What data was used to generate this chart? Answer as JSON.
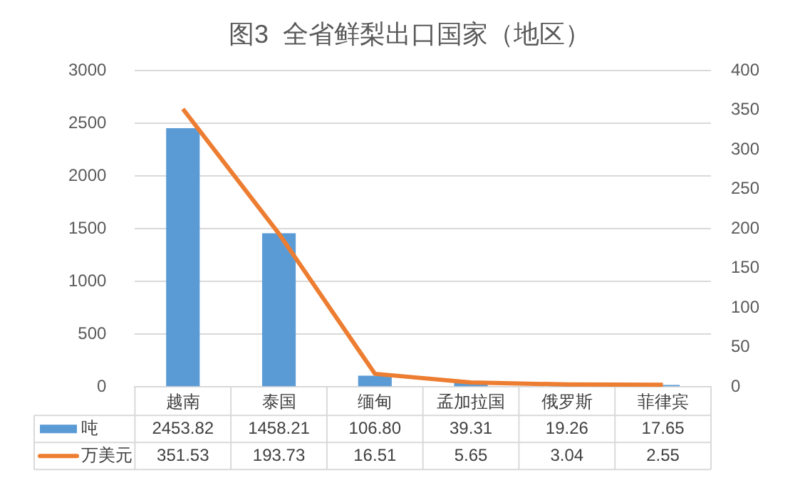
{
  "chart_data": {
    "type": "bar",
    "title": "图3  全省鲜梨出口国家（地区）",
    "categories": [
      "越南",
      "泰国",
      "缅甸",
      "孟加拉国",
      "俄罗斯",
      "菲律宾"
    ],
    "series": [
      {
        "name": "吨",
        "color": "#5b9bd5",
        "values": [
          2453.82,
          1458.21,
          106.8,
          39.31,
          19.26,
          17.65
        ],
        "value_labels": [
          "2453.82",
          "1458.21",
          "106.80",
          "39.31",
          "19.26",
          "17.65"
        ]
      },
      {
        "name": "万美元",
        "type": "line",
        "axis": "y2",
        "color": "#ed7d31",
        "values": [
          351.53,
          193.73,
          16.51,
          5.65,
          3.04,
          2.55
        ],
        "value_labels": [
          "351.53",
          "193.73",
          "16.51",
          "5.65",
          "3.04",
          "2.55"
        ]
      }
    ],
    "ylim": [
      0,
      3000
    ],
    "yticks": [
      0,
      500,
      1000,
      1500,
      2000,
      2500,
      3000
    ],
    "y2lim": [
      0,
      400
    ],
    "y2ticks": [
      0,
      50,
      100,
      150,
      200,
      250,
      300,
      350,
      400
    ],
    "grid": "y",
    "legend": "bottom",
    "marker": "none",
    "line_style": "solid"
  }
}
